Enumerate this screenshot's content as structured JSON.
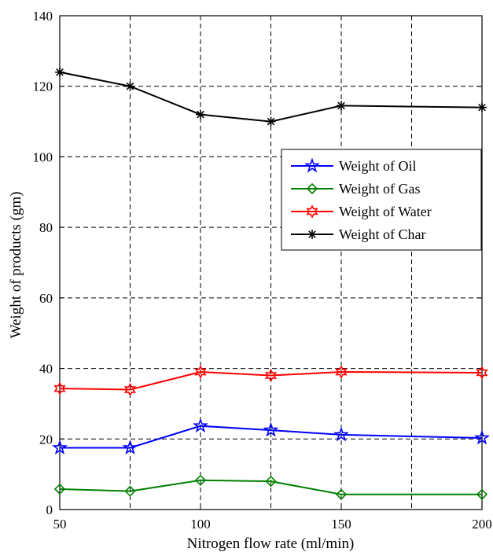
{
  "chart_data": {
    "type": "line",
    "xlabel": "Nitrogen flow rate (ml/min)",
    "ylabel": "Weight of products (gm)",
    "xlim": [
      50,
      200
    ],
    "ylim": [
      0,
      140
    ],
    "xticks": [
      50,
      100,
      150,
      200
    ],
    "yticks": [
      0,
      20,
      40,
      60,
      80,
      100,
      120,
      140
    ],
    "grid": "dashed",
    "legend_position": "right",
    "x": [
      50,
      75,
      100,
      125,
      150,
      200
    ],
    "series": [
      {
        "name": "Weight of Oil",
        "color": "#0000ff",
        "marker": "star5",
        "values": [
          17.5,
          17.5,
          23.7,
          22.5,
          21.2,
          20.3
        ]
      },
      {
        "name": "Weight of Gas",
        "color": "#008000",
        "marker": "diamond",
        "values": [
          5.8,
          5.2,
          8.3,
          8.0,
          4.3,
          4.3
        ]
      },
      {
        "name": "Weight of Water",
        "color": "#ff0000",
        "marker": "hexagram",
        "values": [
          34.3,
          34.0,
          39.0,
          38.0,
          39.0,
          38.8
        ]
      },
      {
        "name": "Weight of Char",
        "color": "#000000",
        "marker": "asterisk",
        "values": [
          124.0,
          120.0,
          112.0,
          110.0,
          114.5,
          114.0
        ]
      }
    ]
  }
}
